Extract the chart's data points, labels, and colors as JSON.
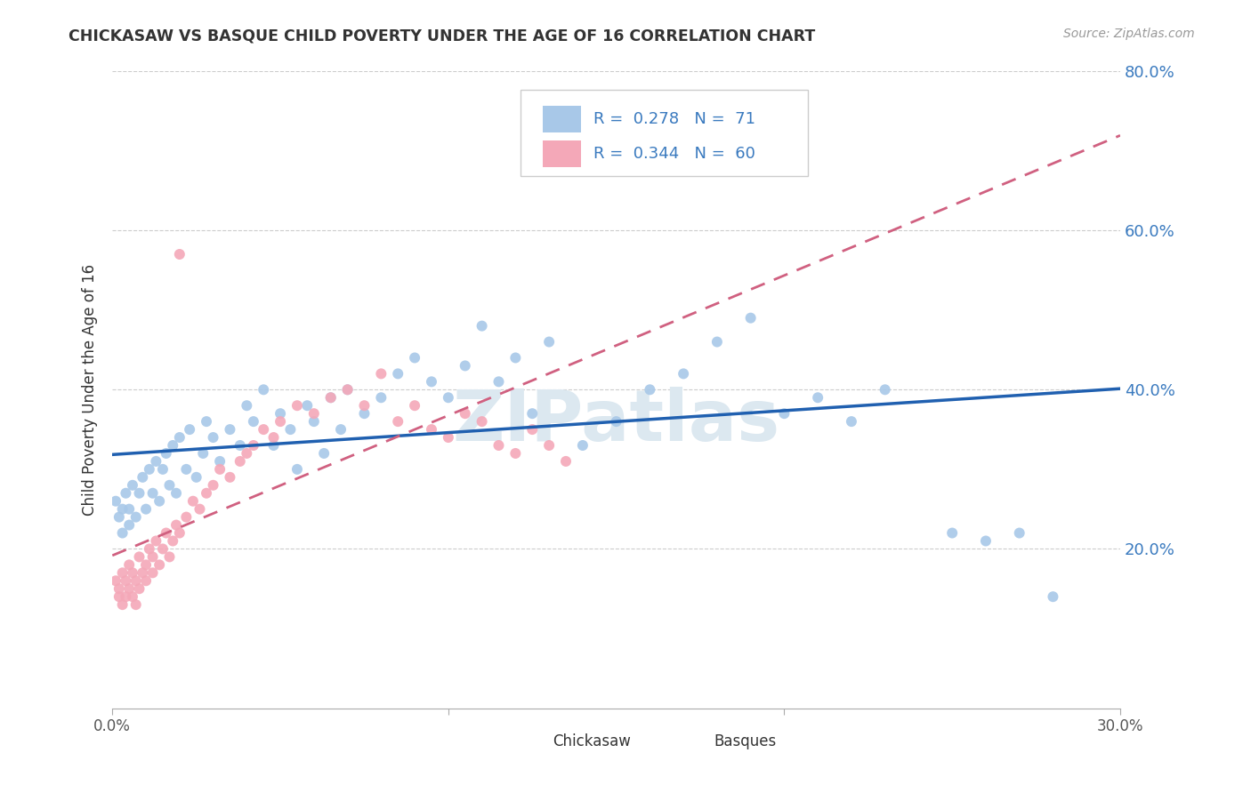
{
  "title": "CHICKASAW VS BASQUE CHILD POVERTY UNDER THE AGE OF 16 CORRELATION CHART",
  "source": "Source: ZipAtlas.com",
  "ylabel": "Child Poverty Under the Age of 16",
  "chickasaw_R": 0.278,
  "chickasaw_N": 71,
  "basque_R": 0.344,
  "basque_N": 60,
  "chickasaw_color": "#a8c8e8",
  "basque_color": "#f4a8b8",
  "chickasaw_line_color": "#2060b0",
  "basque_line_color": "#d06080",
  "legend_label_chickasaw": "Chickasaw",
  "legend_label_basque": "Basques",
  "background_color": "#ffffff",
  "grid_color": "#cccccc",
  "x_min": 0.0,
  "x_max": 0.3,
  "y_min": 0.0,
  "y_max": 0.8,
  "ytick_vals": [
    0.0,
    0.2,
    0.4,
    0.6,
    0.8
  ],
  "ytick_labels": [
    "",
    "20.0%",
    "40.0%",
    "60.0%",
    "80.0%"
  ],
  "xtick_vals": [
    0.0,
    0.1,
    0.2,
    0.3
  ],
  "xtick_labels": [
    "0.0%",
    "",
    "",
    "30.0%"
  ],
  "watermark": "ZIPatlas",
  "watermark_color": "#dce8f0"
}
